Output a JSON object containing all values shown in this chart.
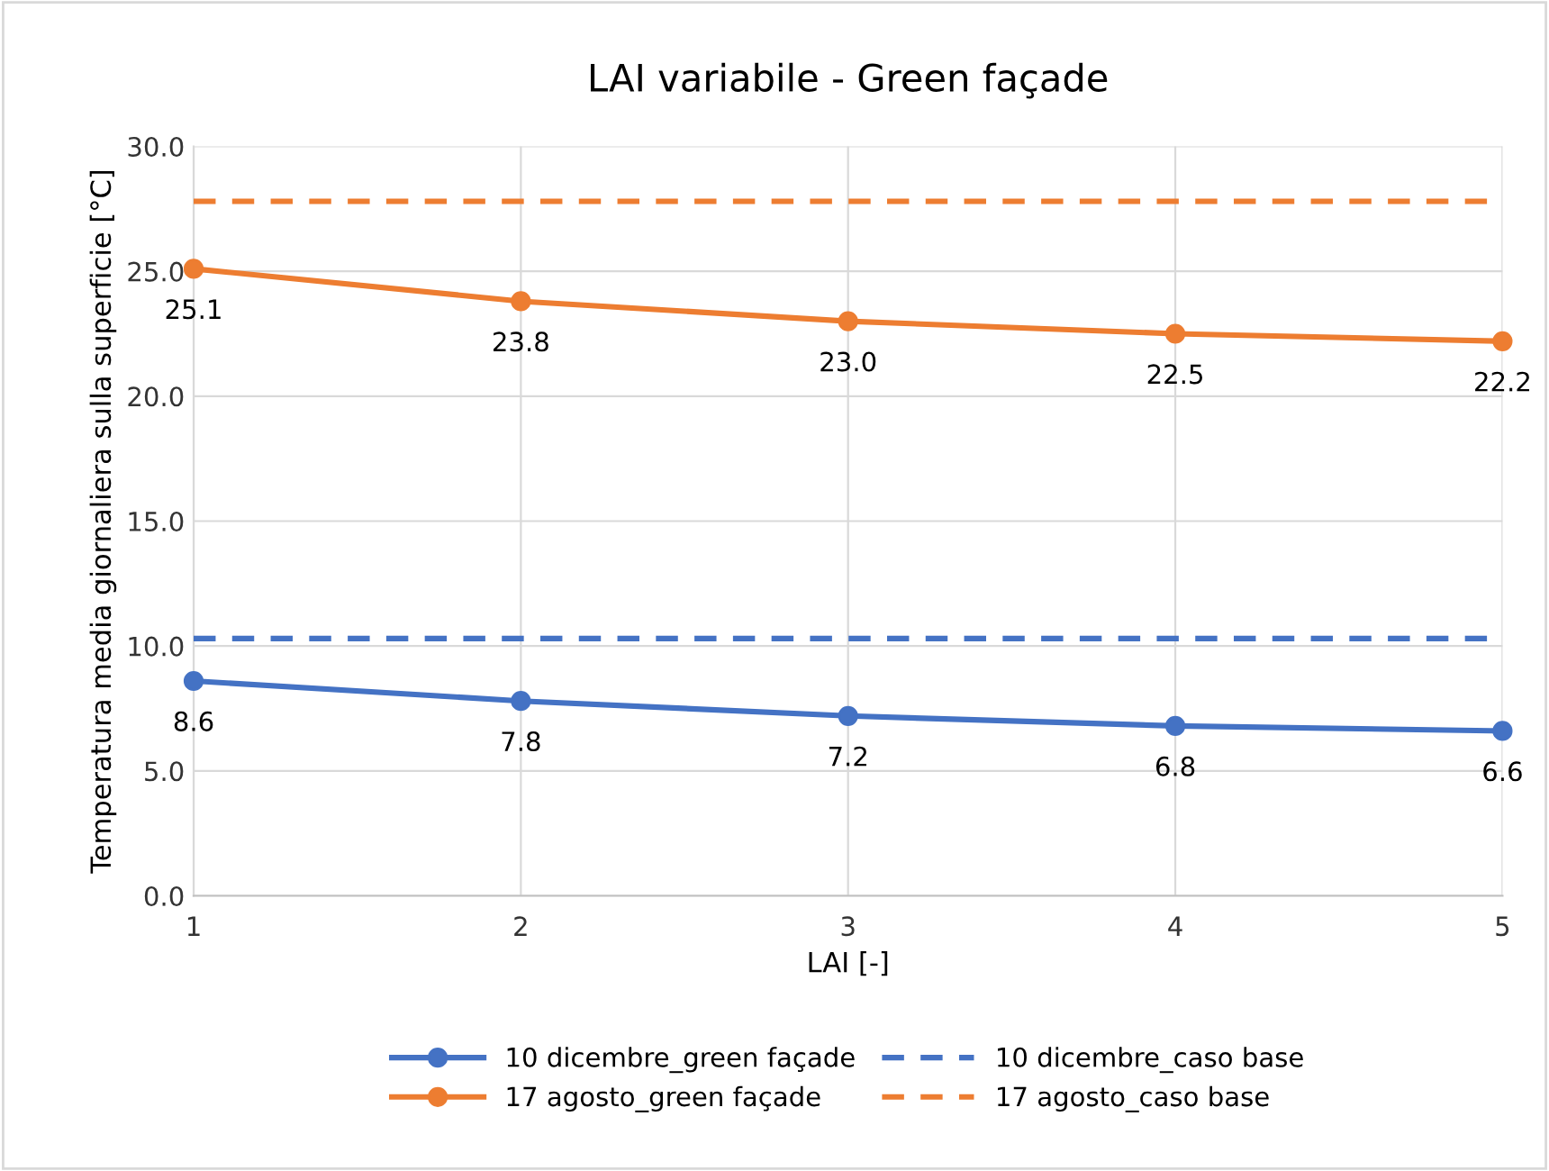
{
  "chart_data": {
    "type": "line",
    "title": "LAI variabile - Green façade",
    "xlabel": "LAI [-]",
    "ylabel": "Temperatura media giornaliera sulla superficie [°C]",
    "x": [
      1,
      2,
      3,
      4,
      5
    ],
    "xlim": [
      1,
      5
    ],
    "xticks": [
      1,
      2,
      3,
      4,
      5
    ],
    "ylim": [
      0,
      30
    ],
    "yticks": [
      {
        "value": 0,
        "label": "0.0"
      },
      {
        "value": 5,
        "label": "5.0"
      },
      {
        "value": 10,
        "label": "10.0"
      },
      {
        "value": 15,
        "label": "15.0"
      },
      {
        "value": 20,
        "label": "20.0"
      },
      {
        "value": 25,
        "label": "25.0"
      },
      {
        "value": 30,
        "label": "30.0"
      }
    ],
    "grid": true,
    "legend": "bottom",
    "series": [
      {
        "name": "10 dicembre_green façade",
        "color": "#4472c4",
        "values": [
          8.6,
          7.8,
          7.2,
          6.8,
          6.6
        ],
        "marker": "circle",
        "line_style": "solid",
        "value_labels": [
          "8.6",
          "7.8",
          "7.2",
          "6.8",
          "6.6"
        ]
      },
      {
        "name": "17 agosto_green façade",
        "color": "#ed7d31",
        "values": [
          25.1,
          23.8,
          23.0,
          22.5,
          22.2
        ],
        "marker": "circle",
        "line_style": "solid",
        "value_labels": [
          "25.1",
          "23.8",
          "23.0",
          "22.5",
          "22.2"
        ]
      },
      {
        "name": "10 dicembre_caso base",
        "color": "#4472c4",
        "values": [
          10.3,
          10.3,
          10.3,
          10.3,
          10.3
        ],
        "marker": "none",
        "line_style": "dashed"
      },
      {
        "name": "17 agosto_caso base",
        "color": "#ed7d31",
        "values": [
          27.8,
          27.8,
          27.8,
          27.8,
          27.8
        ],
        "marker": "none",
        "line_style": "dashed"
      }
    ]
  }
}
